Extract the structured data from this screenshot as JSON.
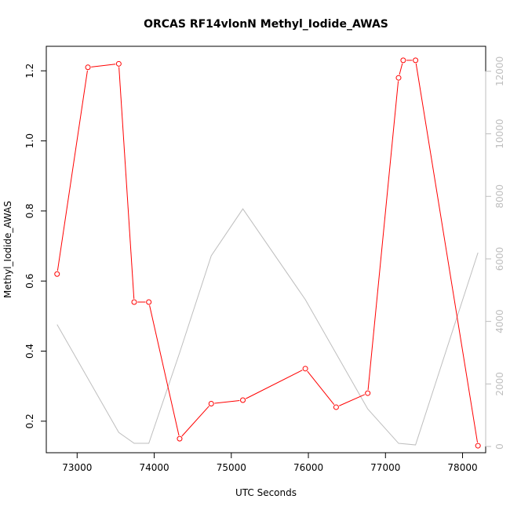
{
  "chart_data": {
    "type": "line",
    "title": "ORCAS RF14vlonN Methyl_Iodide_AWAS",
    "xlabel": "UTC Seconds",
    "ylabel": "Methyl_Iodide_AWAS",
    "xlim": [
      72600,
      78300
    ],
    "ylim": [
      0.11,
      1.27
    ],
    "y2lim": [
      -200,
      12800
    ],
    "x_ticks": [
      73000,
      74000,
      75000,
      76000,
      77000,
      78000
    ],
    "y_ticks": [
      0.2,
      0.4,
      0.6,
      0.8,
      1.0,
      1.2
    ],
    "y_tick_labels": [
      "0.2",
      "0.4",
      "0.6",
      "0.8",
      "1.0",
      "1.2"
    ],
    "y2_ticks": [
      0,
      2000,
      4000,
      6000,
      8000,
      10000,
      12000
    ],
    "grid": false,
    "series": [
      {
        "axis": "left",
        "color": "#ff0000",
        "marker": "open-circle",
        "x": [
          72740,
          73140,
          73540,
          73740,
          73930,
          74330,
          74740,
          75150,
          75960,
          76360,
          76770,
          77170,
          77230,
          77390,
          78200
        ],
        "values": [
          0.62,
          1.21,
          1.22,
          0.54,
          0.54,
          0.15,
          0.25,
          0.26,
          0.35,
          0.24,
          0.28,
          1.18,
          1.23,
          1.23,
          0.13
        ]
      },
      {
        "axis": "right",
        "color": "#bebebe",
        "marker": "none",
        "x": [
          72740,
          73540,
          73740,
          73930,
          74330,
          74740,
          75150,
          75960,
          76770,
          77170,
          77390,
          78200
        ],
        "values": [
          3900,
          450,
          100,
          100,
          3000,
          6100,
          7600,
          4700,
          1200,
          100,
          50,
          6200
        ]
      }
    ]
  }
}
